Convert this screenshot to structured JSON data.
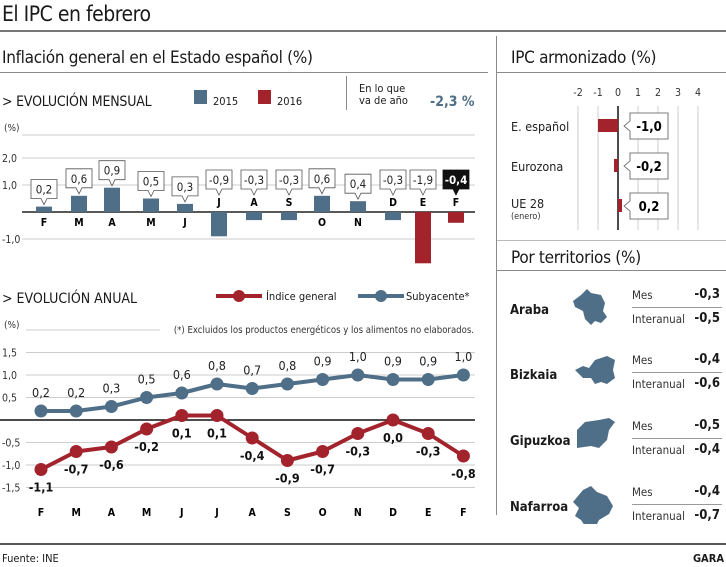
{
  "title": "El IPC en febrero",
  "left_section": {
    "heading": "Inflación general en el Estado español (%)",
    "monthly": {
      "heading": "> EVOLUCIÓN MENSUAL",
      "legend": [
        {
          "label": "2015",
          "color": "#4f6e87"
        },
        {
          "label": "2016",
          "color": "#a3232d"
        }
      ],
      "ytd_label_line1": "En lo que",
      "ytd_label_line2": "va de año",
      "ytd_value": "-2,3 %",
      "ytd_color": "#4f6e87"
    },
    "annual": {
      "heading": "> EVOLUCIÓN ANUAL",
      "legend": [
        {
          "label": "Índice general",
          "color": "#a3232d"
        },
        {
          "label": "Subyacente*",
          "color": "#4f6e87"
        }
      ],
      "footnote": "(*) Excluidos los productos energéticos y los alimentos no elaborados."
    }
  },
  "chart_data": [
    {
      "type": "bar",
      "title": "EVOLUCIÓN MENSUAL",
      "ylabel": "(%)",
      "ylim": [
        -2.0,
        2.5
      ],
      "yticks": [
        2.0,
        1.0,
        -1.0
      ],
      "ytick_labels": [
        "2,0",
        "1,0",
        "-1,0"
      ],
      "categories": [
        "F",
        "M",
        "A",
        "M",
        "J",
        "J",
        "A",
        "S",
        "O",
        "N",
        "D",
        "E",
        "F"
      ],
      "years": [
        2015,
        2015,
        2015,
        2015,
        2015,
        2015,
        2015,
        2015,
        2015,
        2015,
        2015,
        2016,
        2016
      ],
      "values": [
        0.2,
        0.6,
        0.9,
        0.5,
        0.3,
        -0.9,
        -0.3,
        -0.3,
        0.6,
        0.4,
        -0.3,
        -1.9,
        -0.4
      ],
      "value_labels": [
        "0,2",
        "0,6",
        "0,9",
        "0,5",
        "0,3",
        "-0,9",
        "-0,3",
        "-0,3",
        "0,6",
        "0,4",
        "-0,3",
        "-1,9",
        "-0,4"
      ],
      "highlight_last": true,
      "grid": true
    },
    {
      "type": "line",
      "title": "EVOLUCIÓN ANUAL",
      "ylabel": "(%)",
      "ylim": [
        -1.5,
        2.0
      ],
      "yticks": [
        1.5,
        1.0,
        0.5,
        -0.5,
        -1.0,
        -1.5
      ],
      "ytick_labels": [
        "1,5",
        "1,0",
        "0,5",
        "-0,5",
        "-1,0",
        "-1,5"
      ],
      "x": [
        "F",
        "M",
        "A",
        "M",
        "J",
        "J",
        "A",
        "S",
        "O",
        "N",
        "D",
        "E",
        "F"
      ],
      "series": [
        {
          "name": "Subyacente*",
          "color": "#4f6e87",
          "values": [
            0.2,
            0.2,
            0.3,
            0.5,
            0.6,
            0.8,
            0.7,
            0.8,
            0.9,
            1.0,
            0.9,
            0.9,
            1.0
          ],
          "labels": [
            "0,2",
            "0,2",
            "0,3",
            "0,5",
            "0,6",
            "0,8",
            "0,7",
            "0,8",
            "0,9",
            "1,0",
            "0,9",
            "0,9",
            "1,0"
          ]
        },
        {
          "name": "Índice general",
          "color": "#a3232d",
          "values": [
            -1.1,
            -0.7,
            -0.6,
            -0.2,
            0.1,
            0.1,
            -0.4,
            -0.9,
            -0.7,
            -0.3,
            0.0,
            -0.3,
            -0.8
          ],
          "labels": [
            "-1,1",
            "-0,7",
            "-0,6",
            "-0,2",
            "0,1",
            "0,1",
            "-0,4",
            "-0,9",
            "-0,7",
            "-0,3",
            "0,0",
            "-0,3",
            "-0,8"
          ]
        }
      ],
      "legend": "top-right",
      "grid": true
    },
    {
      "type": "bar",
      "orientation": "horizontal",
      "title": "IPC armonizado (%)",
      "xlim": [
        -2,
        4
      ],
      "xticks": [
        -2,
        -1,
        0,
        1,
        2,
        3,
        4
      ],
      "categories": [
        "E. español",
        "Eurozona",
        "UE 28"
      ],
      "category_notes": [
        "",
        "",
        "(enero)"
      ],
      "values": [
        -1.0,
        -0.2,
        0.2
      ],
      "value_labels": [
        "-1,0",
        "-0,2",
        "0,2"
      ],
      "color": "#a3232d"
    },
    {
      "type": "table",
      "title": "Por territorios (%)",
      "rows": [
        {
          "territory": "Araba",
          "mes": "-0,3",
          "interanual": "-0,5"
        },
        {
          "territory": "Bizkaia",
          "mes": "-0,4",
          "interanual": "-0,6"
        },
        {
          "territory": "Gipuzkoa",
          "mes": "-0,5",
          "interanual": "-0,4"
        },
        {
          "territory": "Nafarroa",
          "mes": "-0,4",
          "interanual": "-0,7"
        }
      ],
      "row_labels": [
        "Mes",
        "Interanual"
      ]
    }
  ],
  "right_section": {
    "harmonized_heading": "IPC armonizado (%)",
    "territories_heading": "Por territorios (%)",
    "mes_label": "Mes",
    "interanual_label": "Interanual"
  },
  "footer": {
    "source": "Fuente: INE",
    "brand": "GARA"
  }
}
